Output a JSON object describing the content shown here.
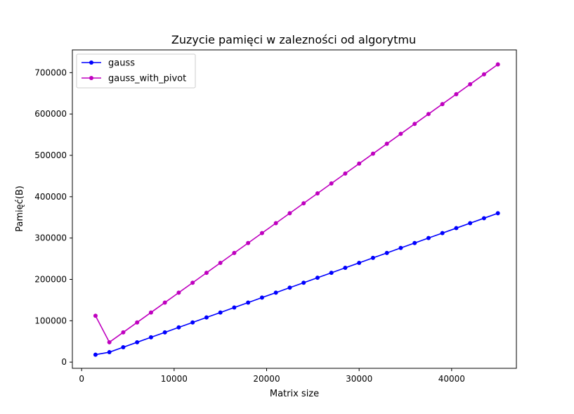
{
  "chart_data": {
    "type": "line",
    "title": "Zuzycie pamięci w zalezności od algorytmu",
    "xlabel": "Matrix size",
    "ylabel": "Pamięć(B)",
    "xlim": [
      -1000,
      47000
    ],
    "ylim": [
      -15000,
      755000
    ],
    "xticks": [
      {
        "value": 0,
        "label": "0"
      },
      {
        "value": 10000,
        "label": "10000"
      },
      {
        "value": 20000,
        "label": "20000"
      },
      {
        "value": 30000,
        "label": "30000"
      },
      {
        "value": 40000,
        "label": "40000"
      }
    ],
    "yticks": [
      {
        "value": 0,
        "label": "0"
      },
      {
        "value": 100000,
        "label": "100000"
      },
      {
        "value": 200000,
        "label": "200000"
      },
      {
        "value": 300000,
        "label": "300000"
      },
      {
        "value": 400000,
        "label": "400000"
      },
      {
        "value": 500000,
        "label": "500000"
      },
      {
        "value": 600000,
        "label": "600000"
      },
      {
        "value": 700000,
        "label": "700000"
      }
    ],
    "grid": false,
    "legend_position": "top-left",
    "x": [
      1500,
      3000,
      4500,
      6000,
      7500,
      9000,
      10500,
      12000,
      13500,
      15000,
      16500,
      18000,
      19500,
      21000,
      22500,
      24000,
      25500,
      27000,
      28500,
      30000,
      31500,
      33000,
      34500,
      36000,
      37500,
      39000,
      40500,
      42000,
      43500,
      45000
    ],
    "series": [
      {
        "name": "gauss",
        "color": "#0000ff",
        "values": [
          18000,
          24000,
          36000,
          48000,
          60000,
          72000,
          84000,
          96000,
          108000,
          120000,
          132000,
          144000,
          156000,
          168000,
          180000,
          192000,
          204000,
          216000,
          228000,
          240000,
          252000,
          264000,
          276000,
          288000,
          300000,
          312000,
          324000,
          336000,
          348000,
          360000
        ]
      },
      {
        "name": "gauss_with_pivot",
        "color": "#bf00bf",
        "values": [
          112000,
          48000,
          72000,
          96000,
          120000,
          144000,
          168000,
          192000,
          216000,
          240000,
          264000,
          288000,
          312000,
          336000,
          360000,
          384000,
          408000,
          432000,
          456000,
          480000,
          504000,
          528000,
          552000,
          576000,
          600000,
          624000,
          648000,
          672000,
          696000,
          720000
        ]
      }
    ]
  }
}
